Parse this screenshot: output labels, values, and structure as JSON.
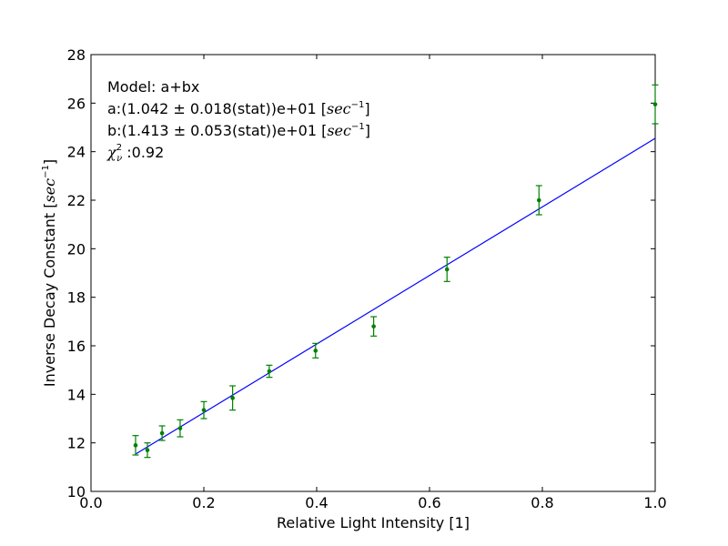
{
  "chart_data": {
    "type": "scatter",
    "xlabel": "Relative Light Intensity [1]",
    "ylabel_text": "Inverse Decay Constant",
    "ylabel_unit_base": "sec",
    "ylabel_unit_exp": "−1",
    "xlim": [
      0.0,
      1.0
    ],
    "ylim": [
      10,
      28
    ],
    "x_ticks": [
      "0.0",
      "0.2",
      "0.4",
      "0.6",
      "0.8",
      "1.0"
    ],
    "y_ticks": [
      "10",
      "12",
      "14",
      "16",
      "18",
      "20",
      "22",
      "24",
      "26",
      "28"
    ],
    "grid": false,
    "series": [
      {
        "kind": "errorbar",
        "color": "#008000",
        "points": [
          {
            "x": 0.079,
            "y": 11.9,
            "err": 0.4
          },
          {
            "x": 0.1,
            "y": 11.7,
            "err": 0.3
          },
          {
            "x": 0.126,
            "y": 12.4,
            "err": 0.3
          },
          {
            "x": 0.158,
            "y": 12.6,
            "err": 0.35
          },
          {
            "x": 0.2,
            "y": 13.35,
            "err": 0.35
          },
          {
            "x": 0.251,
            "y": 13.85,
            "err": 0.5
          },
          {
            "x": 0.316,
            "y": 14.95,
            "err": 0.25
          },
          {
            "x": 0.398,
            "y": 15.8,
            "err": 0.3
          },
          {
            "x": 0.501,
            "y": 16.8,
            "err": 0.4
          },
          {
            "x": 0.631,
            "y": 19.15,
            "err": 0.5
          },
          {
            "x": 0.794,
            "y": 22.0,
            "err": 0.6
          },
          {
            "x": 1.0,
            "y": 25.95,
            "err": 0.8
          }
        ]
      },
      {
        "kind": "fit-line",
        "color": "#0000ff",
        "a": 10.42,
        "b": 14.13,
        "x_range": [
          0.079,
          1.0
        ]
      }
    ],
    "annotation": {
      "model": "Model: a+bx",
      "a_prefix": "a:(1.042 ",
      "a_pm": "±",
      "a_value": " 0.018(stat))e+01 ",
      "b_prefix": "b:(1.413 ",
      "b_pm": "±",
      "b_value": " 0.053(stat))e+01 ",
      "unit_base": "sec",
      "unit_exp": "−1",
      "chi_symbol": "χ",
      "chi_sup": "2",
      "chi_sub": "ν",
      "chi_value": " :0.92"
    }
  }
}
